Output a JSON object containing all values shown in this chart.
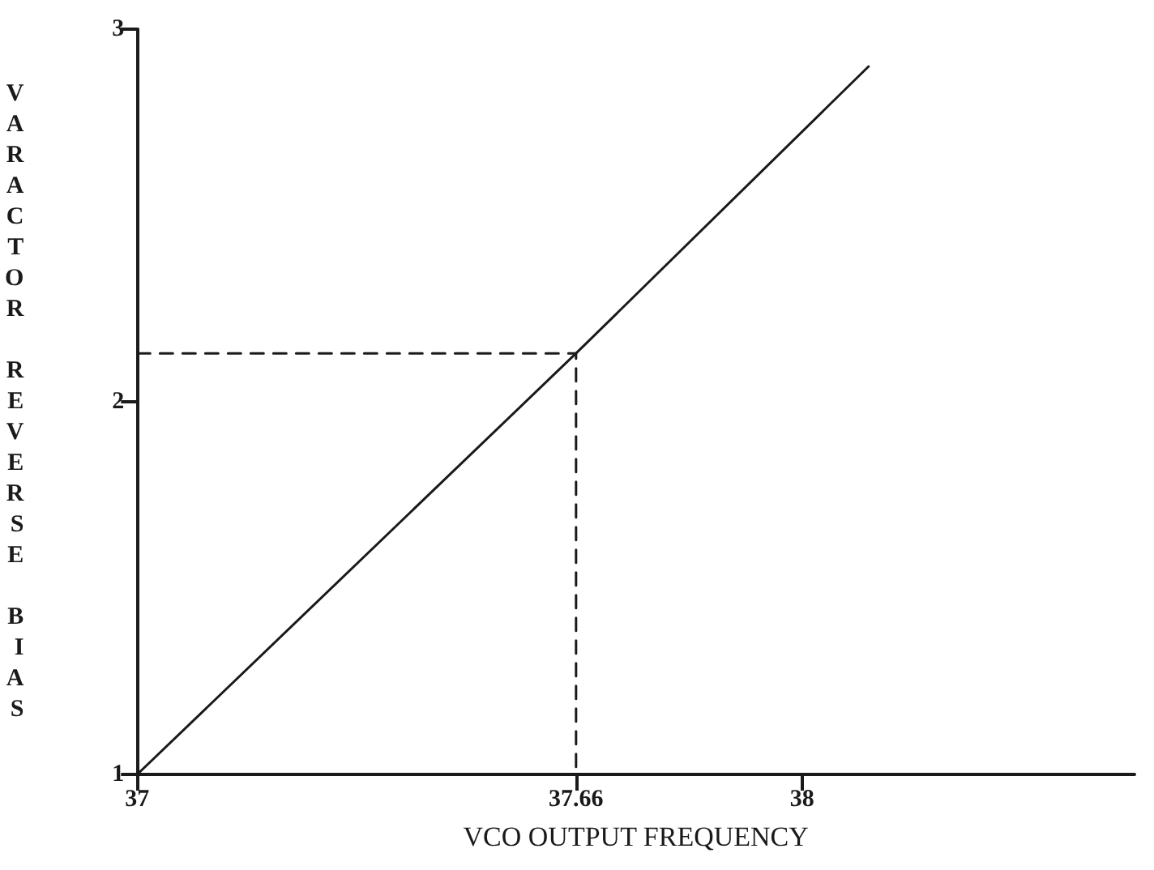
{
  "chart_data": {
    "type": "line",
    "xlabel": "VCO OUTPUT FREQUENCY",
    "ylabel": "VARACTOR REVERSE BIAS",
    "xlim": [
      37,
      38.5
    ],
    "xticks": [
      37,
      37.66,
      38
    ],
    "ylim": [
      1,
      3
    ],
    "yticks": [
      1,
      2,
      3
    ],
    "marker": "none",
    "series": [
      {
        "color": "#1a1a1a",
        "x": [
          37,
          37.66,
          38.1
        ],
        "values": [
          1,
          2.13,
          2.9
        ],
        "line_style": "solid"
      },
      {
        "color": "#1a1a1a",
        "x": [
          37,
          37.66,
          37.66
        ],
        "values": [
          2.13,
          2.13,
          1
        ],
        "line_style": "dashed"
      }
    ]
  }
}
